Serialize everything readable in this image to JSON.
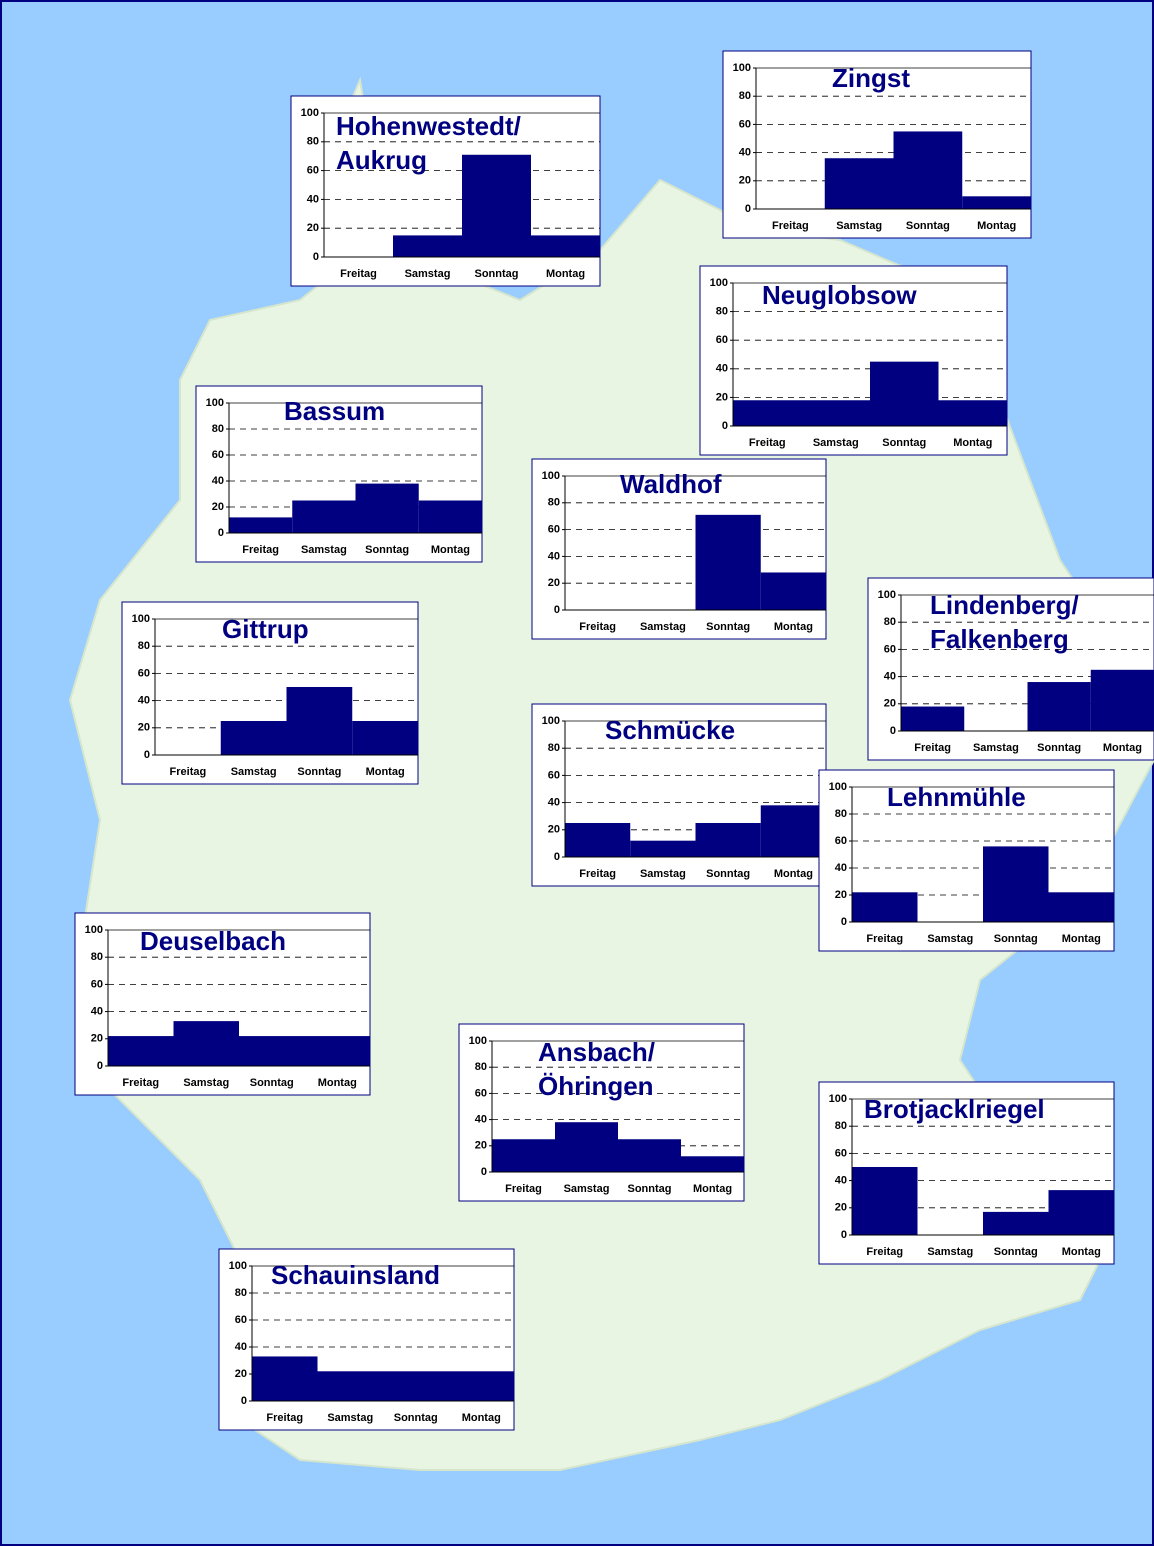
{
  "chart_data": [
    {
      "type": "bar",
      "title": [
        "Hohenwestedt/",
        "Aukrug"
      ],
      "categories": [
        "Freitag",
        "Samstag",
        "Sonntag",
        "Montag"
      ],
      "values": [
        0,
        15,
        71,
        15
      ],
      "color": "#000080",
      "ylim": [
        0,
        100
      ],
      "yticks": [
        0,
        20,
        40,
        60,
        80,
        100
      ],
      "grid": true
    },
    {
      "type": "bar",
      "title": [
        "Zingst"
      ],
      "categories": [
        "Freitag",
        "Samstag",
        "Sonntag",
        "Montag"
      ],
      "values": [
        0,
        36,
        55,
        9
      ],
      "color": "#000080",
      "ylim": [
        0,
        100
      ],
      "yticks": [
        0,
        20,
        40,
        60,
        80,
        100
      ],
      "grid": true
    },
    {
      "type": "bar",
      "title": [
        "Neuglobsow"
      ],
      "categories": [
        "Freitag",
        "Samstag",
        "Sonntag",
        "Montag"
      ],
      "values": [
        18,
        18,
        45,
        18
      ],
      "color": "#000080",
      "ylim": [
        0,
        100
      ],
      "yticks": [
        0,
        20,
        40,
        60,
        80,
        100
      ],
      "grid": true
    },
    {
      "type": "bar",
      "title": [
        "Bassum"
      ],
      "categories": [
        "Freitag",
        "Samstag",
        "Sonntag",
        "Montag"
      ],
      "values": [
        12,
        25,
        38,
        25
      ],
      "color": "#000080",
      "ylim": [
        0,
        100
      ],
      "yticks": [
        0,
        20,
        40,
        60,
        80,
        100
      ],
      "grid": true
    },
    {
      "type": "bar",
      "title": [
        "Waldhof"
      ],
      "categories": [
        "Freitag",
        "Samstag",
        "Sonntag",
        "Montag"
      ],
      "values": [
        0,
        0,
        71,
        28
      ],
      "color": "#000080",
      "ylim": [
        0,
        100
      ],
      "yticks": [
        0,
        20,
        40,
        60,
        80,
        100
      ],
      "grid": true
    },
    {
      "type": "bar",
      "title": [
        "Lindenberg/",
        "Falkenberg"
      ],
      "categories": [
        "Freitag",
        "Samstag",
        "Sonntag",
        "Montag"
      ],
      "values": [
        18,
        0,
        36,
        45
      ],
      "color": "#000080",
      "ylim": [
        0,
        100
      ],
      "yticks": [
        0,
        20,
        40,
        60,
        80,
        100
      ],
      "grid": true
    },
    {
      "type": "bar",
      "title": [
        "Gittrup"
      ],
      "categories": [
        "Freitag",
        "Samstag",
        "Sonntag",
        "Montag"
      ],
      "values": [
        0,
        25,
        50,
        25
      ],
      "color": "#000080",
      "ylim": [
        0,
        100
      ],
      "yticks": [
        0,
        20,
        40,
        60,
        80,
        100
      ],
      "grid": true
    },
    {
      "type": "bar",
      "title": [
        "Schmücke"
      ],
      "categories": [
        "Freitag",
        "Samstag",
        "Sonntag",
        "Montag"
      ],
      "values": [
        25,
        12,
        25,
        38
      ],
      "color": "#000080",
      "ylim": [
        0,
        100
      ],
      "yticks": [
        0,
        20,
        40,
        60,
        80,
        100
      ],
      "grid": true
    },
    {
      "type": "bar",
      "title": [
        "Lehnmühle"
      ],
      "categories": [
        "Freitag",
        "Samstag",
        "Sonntag",
        "Montag"
      ],
      "values": [
        22,
        0,
        56,
        22
      ],
      "color": "#000080",
      "ylim": [
        0,
        100
      ],
      "yticks": [
        0,
        20,
        40,
        60,
        80,
        100
      ],
      "grid": true
    },
    {
      "type": "bar",
      "title": [
        "Deuselbach"
      ],
      "categories": [
        "Freitag",
        "Samstag",
        "Sonntag",
        "Montag"
      ],
      "values": [
        22,
        33,
        22,
        22
      ],
      "color": "#000080",
      "ylim": [
        0,
        100
      ],
      "yticks": [
        0,
        20,
        40,
        60,
        80,
        100
      ],
      "grid": true
    },
    {
      "type": "bar",
      "title": [
        "Ansbach/",
        "Öhringen"
      ],
      "categories": [
        "Freitag",
        "Samstag",
        "Sonntag",
        "Montag"
      ],
      "values": [
        25,
        38,
        25,
        12
      ],
      "color": "#000080",
      "ylim": [
        0,
        100
      ],
      "yticks": [
        0,
        20,
        40,
        60,
        80,
        100
      ],
      "grid": true
    },
    {
      "type": "bar",
      "title": [
        "Brotjacklriegel"
      ],
      "categories": [
        "Freitag",
        "Samstag",
        "Sonntag",
        "Montag"
      ],
      "values": [
        50,
        0,
        17,
        33
      ],
      "color": "#000080",
      "ylim": [
        0,
        100
      ],
      "yticks": [
        0,
        20,
        40,
        60,
        80,
        100
      ],
      "grid": true
    },
    {
      "type": "bar",
      "title": [
        "Schauinsland"
      ],
      "categories": [
        "Freitag",
        "Samstag",
        "Sonntag",
        "Montag"
      ],
      "values": [
        33,
        22,
        22,
        22
      ],
      "color": "#000080",
      "ylim": [
        0,
        100
      ],
      "yticks": [
        0,
        20,
        40,
        60,
        80,
        100
      ],
      "grid": true
    }
  ]
}
